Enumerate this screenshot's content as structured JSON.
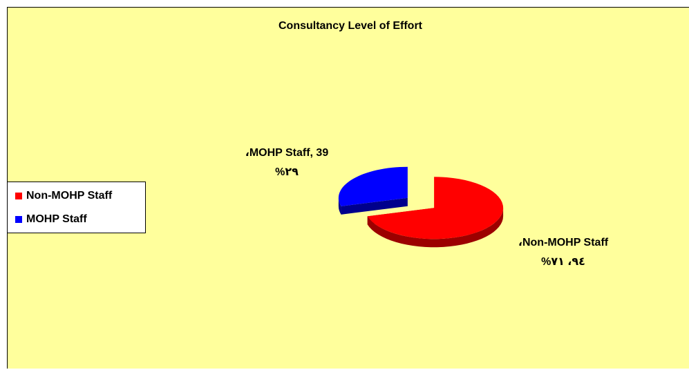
{
  "chart_data": {
    "type": "pie3d",
    "title": "Consultancy Level of Effort",
    "categories": [
      "Non-MOHP Staff",
      "MOHP Staff"
    ],
    "values": [
      94,
      39
    ],
    "value_labels": [
      [
        "،Non-MOHP Staff",
        "%٧١ ،٩٤"
      ],
      [
        "،MOHP Staff, 39",
        "%٢٩"
      ]
    ],
    "colors": [
      "#ff0000",
      "#0000ff"
    ],
    "side_colors": [
      "#9c0000",
      "#00008c"
    ],
    "background": "#ffff9c",
    "legend": "left"
  }
}
